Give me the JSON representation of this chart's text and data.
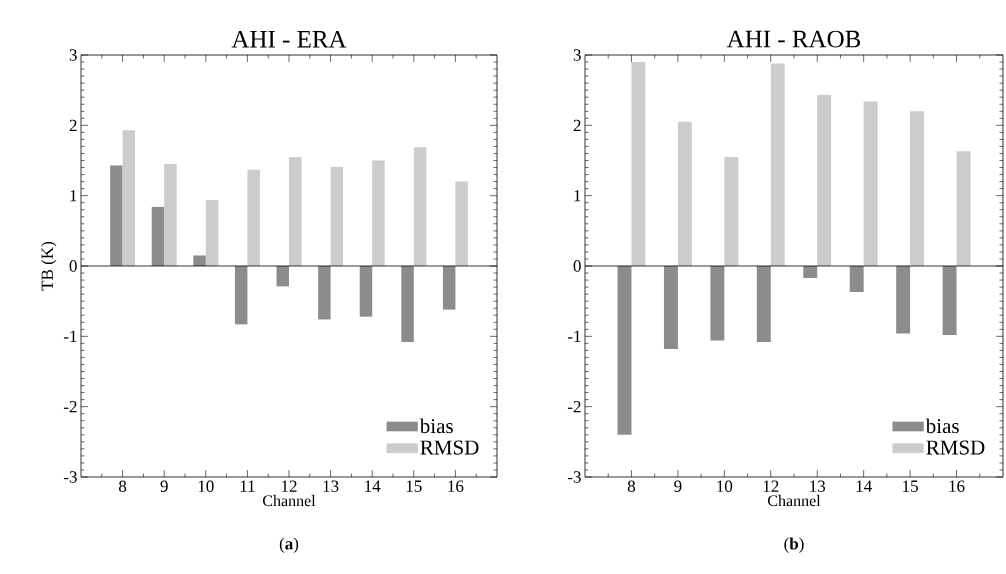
{
  "chart_data": [
    {
      "type": "bar",
      "title": "AHI - ERA",
      "xlabel": "Channel",
      "ylabel": "TB (K)",
      "categories": [
        "8",
        "9",
        "10",
        "11",
        "12",
        "13",
        "14",
        "15",
        "16"
      ],
      "series": [
        {
          "name": "bias",
          "color": "#8c8c8c",
          "values": [
            1.43,
            0.84,
            0.15,
            -0.83,
            -0.29,
            -0.76,
            -0.72,
            -1.08,
            -0.62
          ]
        },
        {
          "name": "RMSD",
          "color": "#cccccc",
          "values": [
            1.93,
            1.45,
            0.94,
            1.37,
            1.55,
            1.41,
            1.5,
            1.69,
            1.2
          ]
        }
      ],
      "ylim": [
        -3,
        3
      ],
      "yticks": [
        -3,
        -2,
        -1,
        0,
        1,
        2,
        3
      ],
      "ref_lines": [
        {
          "axis": "y",
          "value": 0,
          "color": "#000000"
        }
      ],
      "legend": "bottom right",
      "annotations": [
        "(**a**)"
      ]
    },
    {
      "type": "bar",
      "title": "AHI - RAOB",
      "xlabel": "Channel",
      "categories": [
        "8",
        "9",
        "10",
        "12",
        "13",
        "14",
        "15",
        "16"
      ],
      "series": [
        {
          "name": "bias",
          "color": "#8c8c8c",
          "values": [
            -2.4,
            -1.18,
            -1.06,
            -1.08,
            -0.17,
            -0.37,
            -0.96,
            -0.98
          ]
        },
        {
          "name": "RMSD",
          "color": "#cccccc",
          "values": [
            2.9,
            2.05,
            1.55,
            2.88,
            2.43,
            2.34,
            2.2,
            1.63
          ]
        }
      ],
      "ylim": [
        -3,
        3
      ],
      "yticks": [
        -3,
        -2,
        -1,
        0,
        1,
        2,
        3
      ],
      "ref_lines": [
        {
          "axis": "y",
          "value": 0,
          "color": "#000000"
        }
      ],
      "legend": "bottom right",
      "annotations": [
        "(**b**)"
      ]
    }
  ]
}
